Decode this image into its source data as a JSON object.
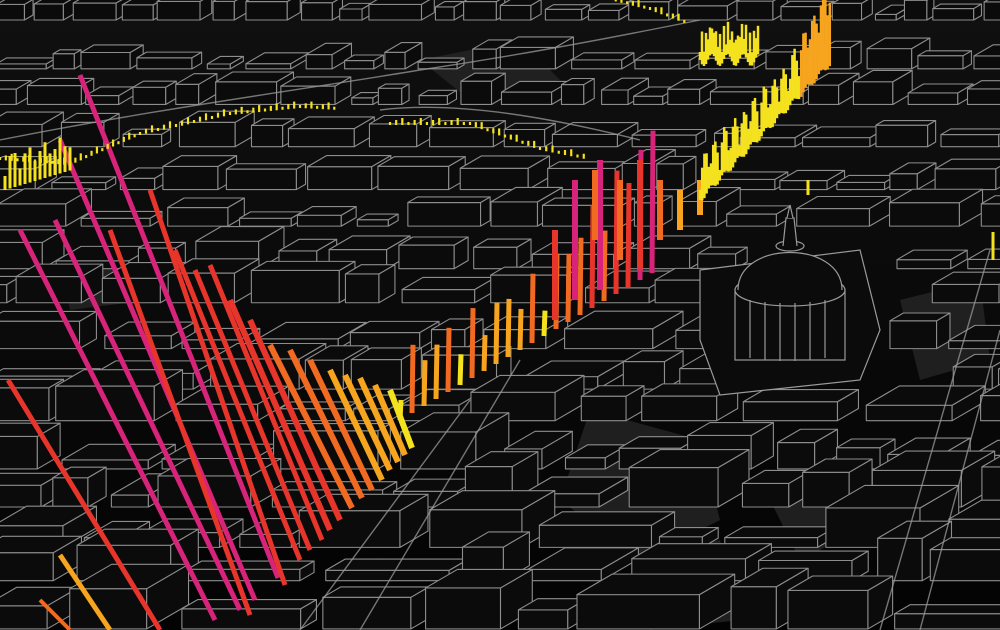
{
  "scene": {
    "kind": "3d-city-data-visualization",
    "background_color": "#050505",
    "building_fill": "#0c0c0c",
    "building_edge": "#8a8a8a",
    "ground_shade": "#2a2a2a",
    "dome_label": "dome-building"
  },
  "bars": {
    "scale_colors": [
      "#f5e21e",
      "#f7a51f",
      "#f06a22",
      "#e8352c",
      "#d8237a"
    ],
    "levels": [
      0.2,
      0.4,
      0.6,
      0.8,
      1.0
    ]
  }
}
